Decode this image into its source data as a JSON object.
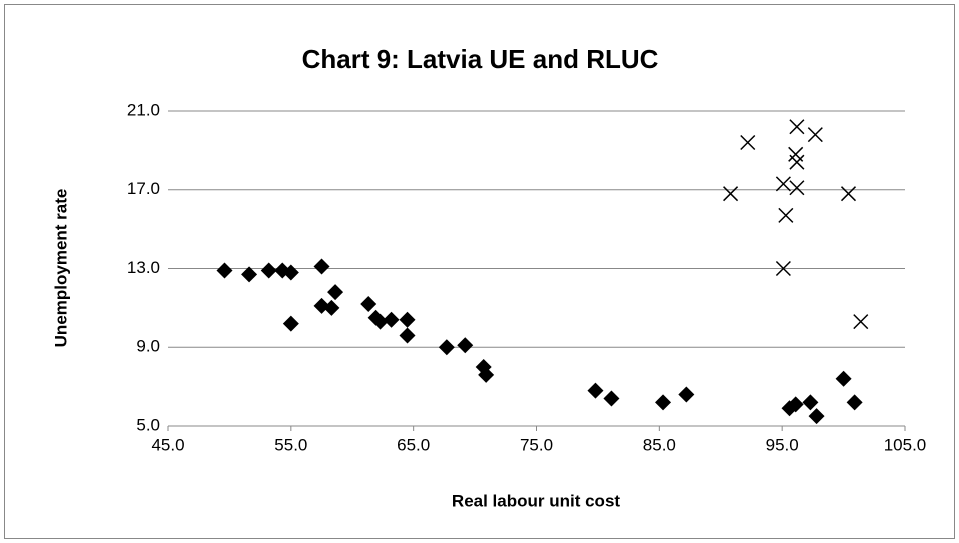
{
  "chart_data": {
    "type": "scatter",
    "title": "Chart 9: Latvia UE and RLUC",
    "x_label": "Real labour unit cost",
    "y_label": "Unemployment rate",
    "xlim": [
      45,
      105
    ],
    "ylim": [
      5,
      21
    ],
    "xticks": [
      {
        "value": 45,
        "label": "45.0"
      },
      {
        "value": 55,
        "label": "55.0"
      },
      {
        "value": 65,
        "label": "65.0"
      },
      {
        "value": 75,
        "label": "75.0"
      },
      {
        "value": 85,
        "label": "85.0"
      },
      {
        "value": 95,
        "label": "95.0"
      },
      {
        "value": 105,
        "label": "105.0"
      }
    ],
    "yticks": [
      {
        "value": 5,
        "label": "5.0"
      },
      {
        "value": 9,
        "label": "9.0"
      },
      {
        "value": 13,
        "label": "13.0"
      },
      {
        "value": 17,
        "label": "17.0"
      },
      {
        "value": 21,
        "label": "21.0"
      }
    ],
    "grid": true,
    "series": [
      {
        "marker": "diamond",
        "color": "#000000",
        "x": [
          49.6,
          51.6,
          53.2,
          54.3,
          55.0,
          57.5,
          55.0,
          57.5,
          58.3,
          58.6,
          61.3,
          61.9,
          62.3,
          63.2,
          64.5,
          64.5,
          67.7,
          69.2,
          70.7,
          70.9,
          79.8,
          81.1,
          85.3,
          87.2,
          95.6,
          96.1,
          97.3,
          97.8,
          100.0,
          100.9
        ],
        "values": [
          12.9,
          12.7,
          12.9,
          12.9,
          12.8,
          13.1,
          10.2,
          11.1,
          11.0,
          11.8,
          11.2,
          10.5,
          10.3,
          10.4,
          10.4,
          9.6,
          9.0,
          9.1,
          8.0,
          7.6,
          6.8,
          6.4,
          6.2,
          6.6,
          5.9,
          6.1,
          6.2,
          5.5,
          7.4,
          6.2
        ]
      },
      {
        "marker": "x",
        "color": "#000000",
        "x": [
          90.8,
          92.2,
          95.1,
          95.3,
          95.1,
          96.1,
          96.2,
          96.2,
          96.2,
          97.7,
          100.4,
          101.4
        ],
        "values": [
          16.8,
          19.4,
          17.3,
          15.7,
          13.0,
          18.8,
          18.4,
          17.1,
          20.2,
          19.8,
          16.8,
          10.3
        ]
      }
    ]
  }
}
